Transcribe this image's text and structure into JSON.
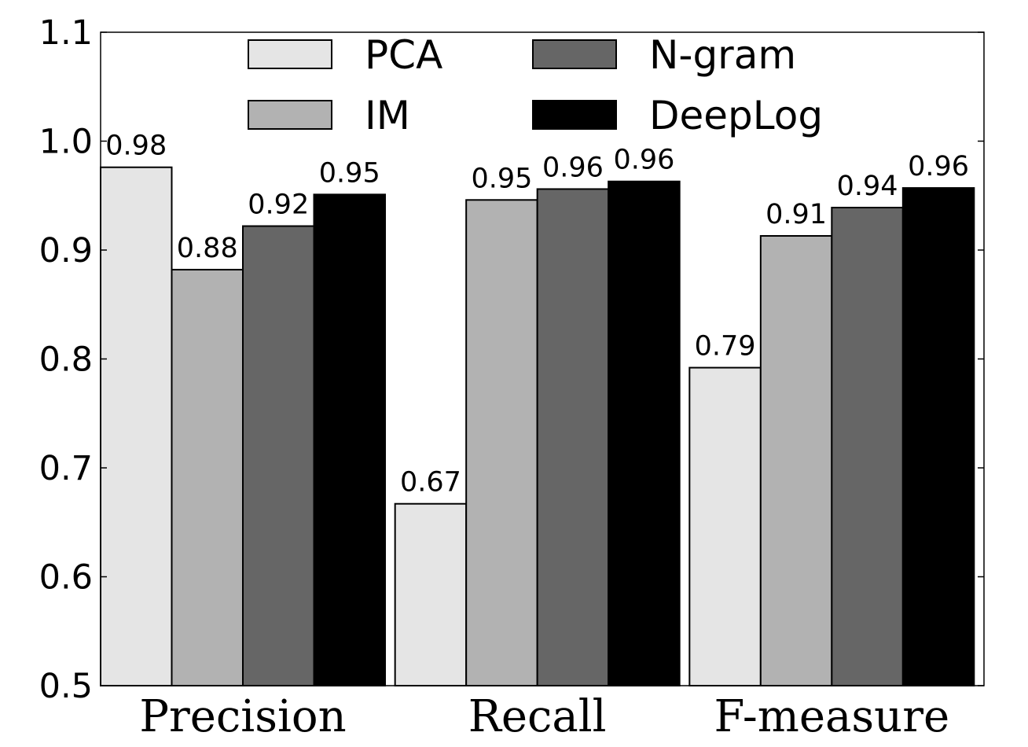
{
  "chart_data": {
    "type": "bar",
    "categories": [
      "Precision",
      "Recall",
      "F-measure"
    ],
    "series": [
      {
        "name": "PCA",
        "color": "#e5e5e5",
        "values": [
          0.976,
          0.667,
          0.792
        ],
        "labels": [
          "0.98",
          "0.67",
          "0.79"
        ]
      },
      {
        "name": "IM",
        "color": "#b2b2b2",
        "values": [
          0.882,
          0.946,
          0.913
        ],
        "labels": [
          "0.88",
          "0.95",
          "0.91"
        ]
      },
      {
        "name": "N-gram",
        "color": "#666666",
        "values": [
          0.922,
          0.956,
          0.939
        ],
        "labels": [
          "0.92",
          "0.96",
          "0.94"
        ]
      },
      {
        "name": "DeepLog",
        "color": "#000000",
        "values": [
          0.951,
          0.963,
          0.957
        ],
        "labels": [
          "0.95",
          "0.96",
          "0.96"
        ]
      }
    ],
    "yticks": [
      "0.5",
      "0.6",
      "0.7",
      "0.8",
      "0.9",
      "1.0",
      "1.1"
    ],
    "ylim": [
      0.5,
      1.1
    ],
    "title": "",
    "xlabel": "",
    "ylabel": "",
    "legend_position": "top-center",
    "grid": false
  }
}
